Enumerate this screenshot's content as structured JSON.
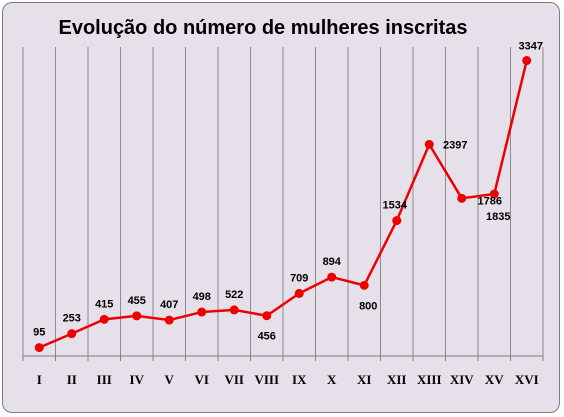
{
  "chart_data": {
    "type": "line",
    "title": "Evolução do número de mulheres inscritas",
    "xlabel": "",
    "ylabel": "",
    "categories": [
      "I",
      "II",
      "III",
      "IV",
      "V",
      "VI",
      "VII",
      "VIII",
      "IX",
      "X",
      "XI",
      "XII",
      "XIII",
      "XIV",
      "XV",
      "XVI"
    ],
    "series": [
      {
        "values": [
          95,
          253,
          415,
          455,
          407,
          498,
          522,
          456,
          709,
          894,
          800,
          1534,
          2397,
          1786,
          1835,
          3347
        ]
      }
    ],
    "data_labels": [
      "95",
      "253",
      "415",
      "455",
      "407",
      "498",
      "522",
      "456",
      "709",
      "894",
      "800",
      "1534",
      "2397",
      "1786",
      "1835",
      "3347"
    ],
    "ylim": [
      0,
      3500
    ],
    "grid": "vertical",
    "legend": "none",
    "line_color": "#ee0000",
    "marker_color": "#ee0000",
    "background_color": "#e6e0ea"
  }
}
